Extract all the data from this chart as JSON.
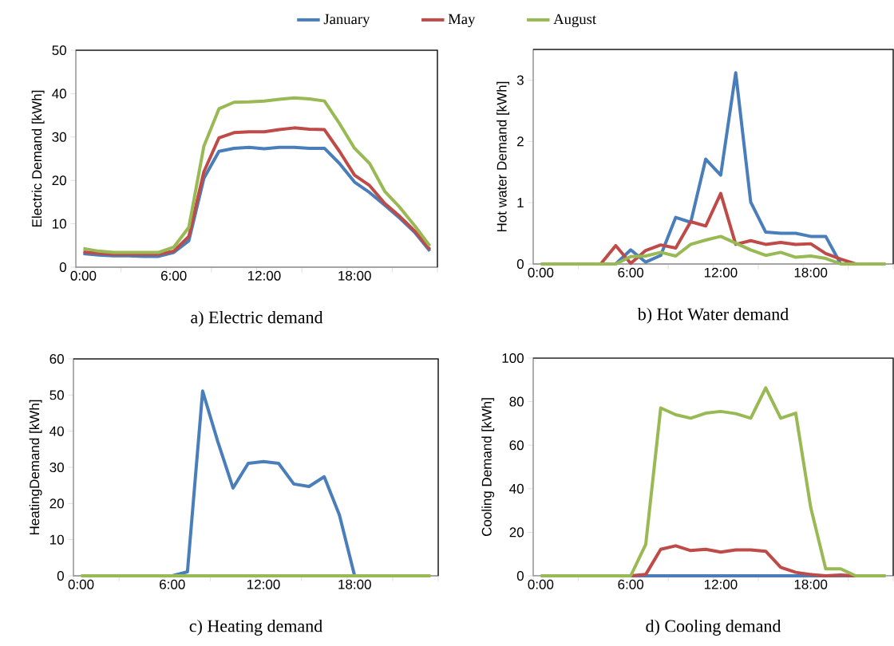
{
  "chart_data": [
    {
      "type": "line",
      "title": "a) Electric demand",
      "ylabel": "Electric Demand [kWh]",
      "legend": "top",
      "x": [
        0,
        1,
        2,
        3,
        4,
        5,
        6,
        7,
        8,
        9,
        10,
        11,
        12,
        13,
        14,
        15,
        16,
        17,
        18,
        19,
        20,
        21,
        22,
        23
      ],
      "xlim": [
        -0.5,
        23.5
      ],
      "xticks": [
        {
          "value": -0.5,
          "label": null
        },
        {
          "value": 0,
          "label": "0:00"
        },
        {
          "value": 2.5,
          "label": null
        },
        {
          "value": 5.5,
          "label": null
        },
        {
          "value": 6,
          "label": "6:00"
        },
        {
          "value": 8.5,
          "label": null
        },
        {
          "value": 11.5,
          "label": null
        },
        {
          "value": 12,
          "label": "12:00"
        },
        {
          "value": 14.5,
          "label": null
        },
        {
          "value": 17.5,
          "label": null
        },
        {
          "value": 18,
          "label": "18:00"
        },
        {
          "value": 20.5,
          "label": null
        },
        {
          "value": 23.5,
          "label": null
        }
      ],
      "ylim": [
        0,
        50
      ],
      "yticks": [
        0,
        10,
        20,
        30,
        40,
        50
      ],
      "series": [
        {
          "name": "January",
          "color": "#4a7ebb",
          "values": [
            3.1,
            2.8,
            2.6,
            2.6,
            2.5,
            2.5,
            3.4,
            6.1,
            20.5,
            26.7,
            27.4,
            27.6,
            27.3,
            27.6,
            27.6,
            27.4,
            27.4,
            23.9,
            19.6,
            17.2,
            14.3,
            11.3,
            8.0,
            3.7
          ]
        },
        {
          "name": "May",
          "color": "#be4b48",
          "values": [
            3.5,
            3.2,
            3.0,
            3.0,
            3.0,
            3.0,
            3.7,
            7.1,
            22.0,
            29.8,
            31.0,
            31.2,
            31.2,
            31.7,
            32.1,
            31.8,
            31.7,
            26.7,
            21.2,
            18.8,
            14.7,
            11.7,
            8.3,
            4.1
          ]
        },
        {
          "name": "August",
          "color": "#98b954",
          "values": [
            4.3,
            3.7,
            3.4,
            3.4,
            3.4,
            3.4,
            4.6,
            9.2,
            27.9,
            36.5,
            38.0,
            38.1,
            38.3,
            38.7,
            39.0,
            38.8,
            38.3,
            33.1,
            27.4,
            23.9,
            17.5,
            13.8,
            9.5,
            4.9
          ]
        }
      ]
    },
    {
      "type": "line",
      "title": "b) Hot Water demand",
      "ylabel": "Hot water Demand [kWh]",
      "x": [
        0,
        1,
        2,
        3,
        4,
        5,
        6,
        7,
        8,
        9,
        10,
        11,
        12,
        13,
        14,
        15,
        16,
        17,
        18,
        19,
        20,
        21,
        22,
        23
      ],
      "xlim": [
        -0.5,
        23.5
      ],
      "xticks": [
        {
          "value": -0.5,
          "label": null
        },
        {
          "value": 0,
          "label": "0:00"
        },
        {
          "value": 2.5,
          "label": null
        },
        {
          "value": 5.5,
          "label": null
        },
        {
          "value": 6,
          "label": "6:00"
        },
        {
          "value": 8.5,
          "label": null
        },
        {
          "value": 11.5,
          "label": null
        },
        {
          "value": 12,
          "label": "12:00"
        },
        {
          "value": 14.5,
          "label": null
        },
        {
          "value": 17.5,
          "label": null
        },
        {
          "value": 18,
          "label": "18:00"
        },
        {
          "value": 20.5,
          "label": null
        },
        {
          "value": 23.5,
          "label": null
        }
      ],
      "ylim": [
        0,
        3.5
      ],
      "yticks": [
        0,
        1,
        2,
        3
      ],
      "series": [
        {
          "color": "#4a7ebb",
          "values": [
            null,
            null,
            null,
            null,
            null,
            0,
            0.23,
            0.03,
            0.14,
            0.76,
            0.68,
            1.71,
            1.45,
            3.12,
            1.01,
            0.52,
            0.5,
            0.5,
            0.45,
            0.45,
            0,
            null,
            null,
            null
          ]
        },
        {
          "color": "#be4b48",
          "values": [
            null,
            null,
            null,
            null,
            0,
            0.3,
            0.01,
            0.22,
            0.31,
            0.26,
            0.69,
            0.62,
            1.15,
            0.32,
            0.38,
            0.32,
            0.35,
            0.32,
            0.33,
            0.17,
            0.08,
            0,
            null,
            null
          ]
        },
        {
          "color": "#98b954",
          "values": [
            0,
            0,
            0,
            0,
            0,
            0,
            0.12,
            0.13,
            0.19,
            0.13,
            0.32,
            0.39,
            0.45,
            0.34,
            0.23,
            0.14,
            0.19,
            0.11,
            0.13,
            0.09,
            0,
            0,
            0,
            0
          ]
        }
      ]
    },
    {
      "type": "line",
      "title": "c) Heating demand",
      "ylabel": "HeatingDemand [kWh]",
      "x": [
        0,
        1,
        2,
        3,
        4,
        5,
        6,
        7,
        8,
        9,
        10,
        11,
        12,
        13,
        14,
        15,
        16,
        17,
        18,
        19,
        20,
        21,
        22,
        23
      ],
      "xlim": [
        -0.5,
        23.5
      ],
      "xticks": [
        {
          "value": -0.5,
          "label": null
        },
        {
          "value": 0,
          "label": "0:00"
        },
        {
          "value": 2.5,
          "label": null
        },
        {
          "value": 5.5,
          "label": null
        },
        {
          "value": 6,
          "label": "6:00"
        },
        {
          "value": 8.5,
          "label": null
        },
        {
          "value": 11.5,
          "label": null
        },
        {
          "value": 12,
          "label": "12:00"
        },
        {
          "value": 14.5,
          "label": null
        },
        {
          "value": 17.5,
          "label": null
        },
        {
          "value": 18,
          "label": "18:00"
        },
        {
          "value": 20.5,
          "label": null
        },
        {
          "value": 23.5,
          "label": null
        }
      ],
      "ylim": [
        0,
        60
      ],
      "yticks": [
        0,
        10,
        20,
        30,
        40,
        50,
        60
      ],
      "series": [
        {
          "color": "#4a7ebb",
          "values": [
            null,
            null,
            null,
            null,
            null,
            null,
            0,
            1.1,
            51.1,
            37.1,
            24.3,
            31.1,
            31.6,
            31.1,
            25.4,
            24.7,
            27.4,
            16.8,
            0,
            null,
            null,
            null,
            null,
            null
          ]
        },
        {
          "color": "#98b954",
          "values": [
            0,
            0,
            0,
            0,
            0,
            0,
            0,
            0,
            0,
            0,
            0,
            0,
            0,
            0,
            0,
            0,
            0,
            0,
            0,
            0,
            0,
            0,
            0,
            0
          ]
        }
      ]
    },
    {
      "type": "line",
      "title": "d) Cooling demand",
      "ylabel": "Cooling Demand [kWh]",
      "x": [
        0,
        1,
        2,
        3,
        4,
        5,
        6,
        7,
        8,
        9,
        10,
        11,
        12,
        13,
        14,
        15,
        16,
        17,
        18,
        19,
        20,
        21,
        22,
        23
      ],
      "xlim": [
        -0.5,
        23.5
      ],
      "xticks": [
        {
          "value": -0.5,
          "label": null
        },
        {
          "value": 0,
          "label": "0:00"
        },
        {
          "value": 2.5,
          "label": null
        },
        {
          "value": 5.5,
          "label": null
        },
        {
          "value": 6,
          "label": "6:00"
        },
        {
          "value": 8.5,
          "label": null
        },
        {
          "value": 11.5,
          "label": null
        },
        {
          "value": 12,
          "label": "12:00"
        },
        {
          "value": 14.5,
          "label": null
        },
        {
          "value": 17.5,
          "label": null
        },
        {
          "value": 18,
          "label": "18:00"
        },
        {
          "value": 20.5,
          "label": null
        },
        {
          "value": 23.5,
          "label": null
        }
      ],
      "ylim": [
        0,
        100
      ],
      "yticks": [
        0,
        20,
        40,
        60,
        80,
        100
      ],
      "series": [
        {
          "color": "#4a7ebb",
          "values": [
            null,
            null,
            null,
            null,
            null,
            null,
            0,
            0,
            0,
            0,
            0,
            0,
            0,
            0,
            0,
            0,
            0,
            0,
            0,
            0,
            0,
            0,
            null,
            null
          ]
        },
        {
          "color": "#be4b48",
          "values": [
            null,
            null,
            null,
            null,
            null,
            null,
            0,
            0.6,
            12.2,
            13.8,
            11.6,
            12.2,
            10.9,
            11.9,
            11.9,
            11.3,
            3.9,
            1.6,
            0.6,
            0,
            0.4,
            0,
            null,
            null
          ]
        },
        {
          "color": "#98b954",
          "values": [
            0,
            0,
            0,
            0,
            0,
            0,
            0,
            14.4,
            77.1,
            74.0,
            72.4,
            74.7,
            75.5,
            74.5,
            72.4,
            86.3,
            72.4,
            74.7,
            31.4,
            3.2,
            3.2,
            0,
            0,
            0
          ]
        }
      ]
    }
  ]
}
